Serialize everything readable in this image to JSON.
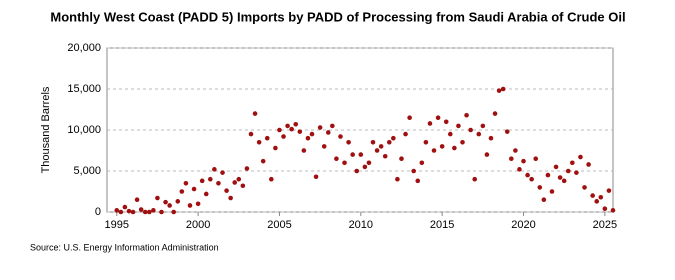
{
  "chart_data": {
    "type": "scatter",
    "title": "Monthly West Coast (PADD 5) Imports by PADD of Processing from Saudi Arabia of Crude Oil",
    "y_label": "Thousand Barrels",
    "source": "Source: U.S. Energy Information Administration",
    "color": "#a01010",
    "grid": true,
    "xlim": [
      1994.4,
      2025.5
    ],
    "xticks": [
      1995,
      2000,
      2005,
      2010,
      2015,
      2020,
      2025
    ],
    "ylim": [
      0,
      20000
    ],
    "yticks": [
      0,
      {
        "value": 5000,
        "label": "5,000"
      },
      {
        "value": 10000,
        "label": "10,000"
      },
      {
        "value": 15000,
        "label": "15,000"
      },
      {
        "value": 20000,
        "label": "20,000"
      }
    ],
    "x": [
      1995,
      1995.25,
      1995.5,
      1995.75,
      1996,
      1996.25,
      1996.5,
      1996.75,
      1997,
      1997.25,
      1997.5,
      1997.75,
      1998,
      1998.25,
      1998.5,
      1998.75,
      1999,
      1999.25,
      1999.5,
      1999.75,
      2000,
      2000.25,
      2000.5,
      2000.75,
      2001,
      2001.25,
      2001.5,
      2001.75,
      2002,
      2002.25,
      2002.5,
      2002.75,
      2003,
      2003.25,
      2003.5,
      2003.75,
      2004,
      2004.25,
      2004.5,
      2004.75,
      2005,
      2005.25,
      2005.5,
      2005.75,
      2006,
      2006.25,
      2006.5,
      2006.75,
      2007,
      2007.25,
      2007.5,
      2007.75,
      2008,
      2008.25,
      2008.5,
      2008.75,
      2009,
      2009.25,
      2009.5,
      2009.75,
      2010,
      2010.25,
      2010.5,
      2010.75,
      2011,
      2011.25,
      2011.5,
      2011.75,
      2012,
      2012.25,
      2012.5,
      2012.75,
      2013,
      2013.25,
      2013.5,
      2013.75,
      2014,
      2014.25,
      2014.5,
      2014.75,
      2015,
      2015.25,
      2015.5,
      2015.75,
      2016,
      2016.25,
      2016.5,
      2016.75,
      2017,
      2017.25,
      2017.5,
      2017.75,
      2018,
      2018.25,
      2018.5,
      2018.75,
      2019,
      2019.25,
      2019.5,
      2019.75,
      2020,
      2020.25,
      2020.5,
      2020.75,
      2021,
      2021.25,
      2021.5,
      2021.75,
      2022,
      2022.25,
      2022.5,
      2022.75,
      2023,
      2023.25,
      2023.5,
      2023.75,
      2024,
      2024.25,
      2024.5,
      2024.75,
      2025,
      2025.25,
      2025.5
    ],
    "values": [
      200,
      0,
      600,
      100,
      0,
      1500,
      300,
      0,
      0,
      200,
      1700,
      0,
      1200,
      800,
      0,
      1300,
      2500,
      3500,
      800,
      2800,
      1000,
      3800,
      2200,
      4000,
      5200,
      3500,
      4800,
      2600,
      1700,
      3600,
      4000,
      3200,
      5300,
      9500,
      12000,
      8500,
      6200,
      9000,
      4000,
      7800,
      10000,
      9200,
      10500,
      10100,
      10700,
      9800,
      7500,
      9000,
      9500,
      4300,
      10300,
      8000,
      9700,
      10500,
      6500,
      9200,
      6000,
      8500,
      7000,
      5000,
      7000,
      5500,
      6000,
      8500,
      7500,
      8000,
      6800,
      8500,
      9000,
      4000,
      6500,
      9500,
      11500,
      5000,
      3800,
      6000,
      8500,
      10800,
      7500,
      11500,
      8000,
      11000,
      9500,
      7800,
      10500,
      8500,
      11800,
      10000,
      4000,
      9500,
      10500,
      7000,
      9000,
      12000,
      14800,
      15000,
      9800,
      6500,
      7500,
      5200,
      6200,
      4500,
      4000,
      6500,
      3000,
      1500,
      4500,
      2500,
      5500,
      4200,
      3800,
      5000,
      6000,
      4800,
      6700,
      3000,
      5800,
      2000,
      1300,
      1800,
      400,
      2600,
      200
    ]
  }
}
